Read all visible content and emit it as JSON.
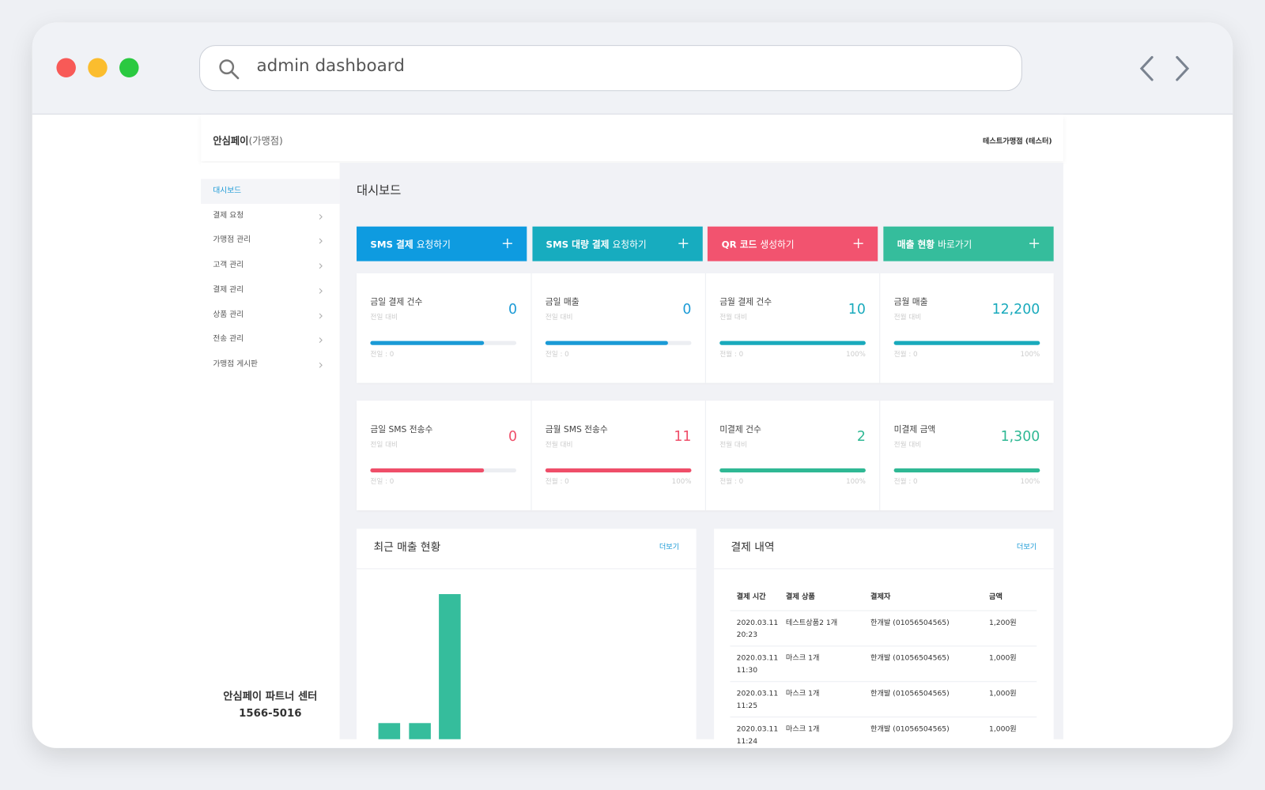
{
  "browser": {
    "search": "admin dashboard"
  },
  "header": {
    "brand": "안심페이",
    "brand_sub": "(가맹점)",
    "user": "테스트가맹점 (테스터)"
  },
  "sidebar": {
    "items": [
      "대시보드",
      "결제 요청",
      "가맹점 관리",
      "고객 관리",
      "결제 관리",
      "상품 관리",
      "전송 관리",
      "가맹점 게시판"
    ],
    "active": 0,
    "footer": [
      "안심페이 파트너 센터",
      "1566-5016"
    ]
  },
  "page_title": "대시보드",
  "actions": [
    {
      "bold": "SMS 결제",
      "rest": "요청하기",
      "color": "#0e9be0"
    },
    {
      "bold": "SMS 대량 결제",
      "rest": "요청하기",
      "color": "#17acbf"
    },
    {
      "bold": "QR 코드",
      "rest": "생성하기",
      "color": "#f2536f"
    },
    {
      "bold": "매출 현황",
      "rest": "바로가기",
      "color": "#35bd9c"
    }
  ],
  "stats": [
    {
      "label": "금일 결제 건수",
      "sub": "전일 대비",
      "value": "0",
      "progress": 78,
      "left": "전일 : 0",
      "color": "#1a9ad6"
    },
    {
      "label": "금일 매출",
      "sub": "전일 대비",
      "value": "0",
      "progress": 84,
      "left": "전일 : 0",
      "color": "#1a9ad6"
    },
    {
      "label": "금월 결제 건수",
      "sub": "전월 대비",
      "value": "10",
      "progress": 100,
      "left": "전월 : 0",
      "right": "100%",
      "color": "#19aabc"
    },
    {
      "label": "금월 매출",
      "sub": "전월 대비",
      "value": "12,200",
      "progress": 100,
      "left": "전월 : 0",
      "right": "100%",
      "color": "#19aabc"
    },
    {
      "label": "금일 SMS 전송수",
      "sub": "전일 대비",
      "value": "0",
      "progress": 78,
      "left": "전일 : 0",
      "color": "#ef4e69"
    },
    {
      "label": "금월 SMS 전송수",
      "sub": "전월 대비",
      "value": "11",
      "progress": 100,
      "left": "전월 : 0",
      "right": "100%",
      "color": "#ef4e69"
    },
    {
      "label": "미결제 건수",
      "sub": "전월 대비",
      "value": "2",
      "progress": 100,
      "left": "전월 : 0",
      "right": "100%",
      "color": "#2fb894"
    },
    {
      "label": "미결제 금액",
      "sub": "전월 대비",
      "value": "1,300",
      "progress": 100,
      "left": "전월 : 0",
      "right": "100%",
      "color": "#2fb894"
    }
  ],
  "sales_panel": {
    "title": "최근 매출 현황",
    "more": "더보기",
    "chart_data": {
      "type": "bar",
      "values": [
        2,
        2,
        18
      ],
      "ylim": [
        0,
        20
      ],
      "color": "#35bd9c"
    }
  },
  "payments_panel": {
    "title": "결제 내역",
    "more": "더보기",
    "table": {
      "headers": [
        "결제 시간",
        "결제 상품",
        "결제자",
        "금액"
      ],
      "rows": [
        [
          "2020.03.11 20:23",
          "테스트상품2 1개",
          "한개발 (01056504565)",
          "1,200원"
        ],
        [
          "2020.03.11 11:30",
          "마스크 1개",
          "한개발 (01056504565)",
          "1,000원"
        ],
        [
          "2020.03.11 11:25",
          "마스크 1개",
          "한개발 (01056504565)",
          "1,000원"
        ],
        [
          "2020.03.11 11:24",
          "마스크 1개",
          "한개발 (01056504565)",
          "1,000원"
        ]
      ]
    }
  }
}
